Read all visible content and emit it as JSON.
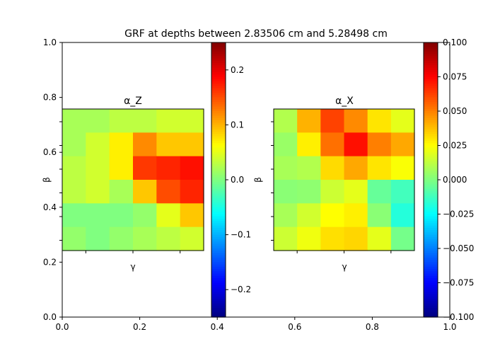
{
  "chart_data": {
    "type": "heatmap",
    "title": "GRF at depths between 2.83506 cm and 5.28498 cm",
    "colormap": "jet",
    "outer_axes": {
      "xlim": [
        0.0,
        1.0
      ],
      "ylim": [
        0.0,
        1.0
      ],
      "xticks": [
        "0.0",
        "0.2",
        "0.4",
        "0.6",
        "0.8",
        "1.0"
      ],
      "yticks": [
        "0.0",
        "0.2",
        "0.4",
        "0.6",
        "0.8",
        "1.0"
      ]
    },
    "panels": [
      {
        "title": "α_Z",
        "xlabel": "γ",
        "ylabel": "β",
        "vmin": -0.25,
        "vmax": 0.25,
        "colorbar_ticks": [
          "−0.2",
          "−0.1",
          "0.0",
          "0.1",
          "0.2"
        ],
        "values": [
          [
            0.02,
            0.02,
            0.03,
            0.03,
            0.04,
            0.04
          ],
          [
            0.02,
            0.04,
            0.07,
            0.12,
            0.09,
            0.09
          ],
          [
            0.03,
            0.04,
            0.07,
            0.16,
            0.17,
            0.18
          ],
          [
            0.03,
            0.04,
            0.02,
            0.09,
            0.15,
            0.17
          ],
          [
            0.0,
            0.0,
            0.0,
            0.01,
            0.05,
            0.09
          ],
          [
            0.01,
            0.0,
            0.01,
            0.02,
            0.03,
            0.04
          ]
        ]
      },
      {
        "title": "α_X",
        "xlabel": "γ",
        "ylabel": "β",
        "vmin": -0.1,
        "vmax": 0.1,
        "colorbar_ticks": [
          "−0.100",
          "−0.075",
          "−0.050",
          "−0.025",
          "0.000",
          "0.025",
          "0.050",
          "0.075",
          "0.100"
        ],
        "values": [
          [
            0.01,
            0.04,
            0.062,
            0.048,
            0.03,
            0.02
          ],
          [
            0.005,
            0.028,
            0.053,
            0.072,
            0.05,
            0.042
          ],
          [
            0.008,
            0.01,
            0.032,
            0.042,
            0.03,
            0.024
          ],
          [
            0.002,
            0.003,
            0.015,
            0.02,
            -0.005,
            -0.012
          ],
          [
            0.008,
            0.016,
            0.025,
            0.028,
            0.002,
            -0.018
          ],
          [
            0.015,
            0.022,
            0.031,
            0.033,
            0.02,
            -0.002
          ]
        ]
      }
    ]
  }
}
